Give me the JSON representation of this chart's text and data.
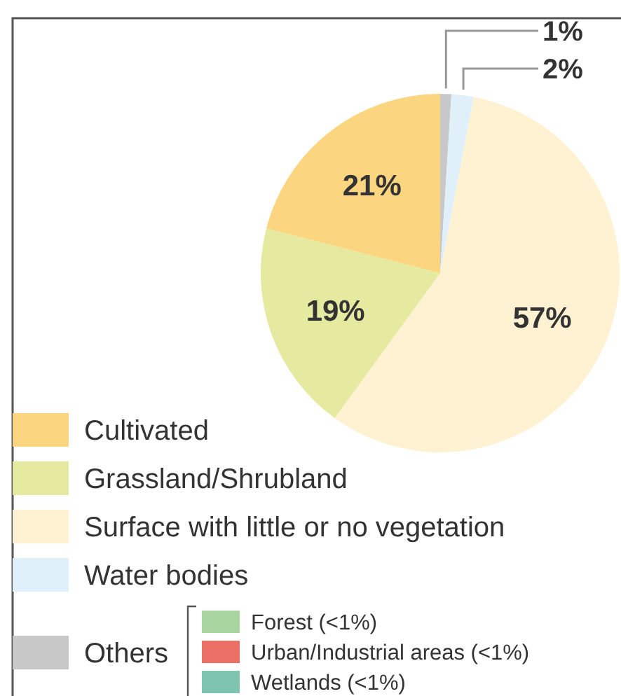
{
  "chart_data": {
    "type": "pie",
    "categories": [
      "Others",
      "Water bodies",
      "Surface with little or no vegetation",
      "Grassland/Shrubland",
      "Cultivated"
    ],
    "values": [
      1,
      2,
      57,
      19,
      21
    ],
    "colors": [
      "#c8c8c8",
      "#dff0fa",
      "#fff2d2",
      "#e6e9a0",
      "#fbd580"
    ],
    "value_labels": [
      "1%",
      "2%",
      "57%",
      "19%",
      "21%"
    ],
    "legend": "bottom left",
    "annotations": [
      "Forest (<1%)",
      "Urban/Industrial areas (<1%)",
      "Wetlands (<1%)"
    ]
  }
}
